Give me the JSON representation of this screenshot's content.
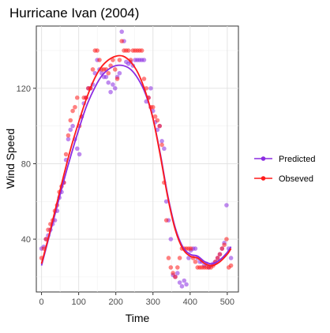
{
  "chart_data": {
    "type": "scatter",
    "title": "Hurricane Ivan (2004)",
    "xlabel": "Time",
    "ylabel": "Wind Speed",
    "xlim": [
      -14,
      530
    ],
    "ylim": [
      12,
      153
    ],
    "x_ticks": [
      0,
      100,
      200,
      300,
      400,
      500
    ],
    "y_ticks": [
      40,
      80,
      120
    ],
    "grid": true,
    "legend_position": "right",
    "series": [
      {
        "name": "Predicted",
        "color": "#8B2BE2",
        "points": [
          [
            0,
            35
          ],
          [
            6,
            36
          ],
          [
            12,
            40
          ],
          [
            18,
            42
          ],
          [
            24,
            45
          ],
          [
            30,
            48
          ],
          [
            36,
            50
          ],
          [
            42,
            55
          ],
          [
            48,
            62
          ],
          [
            54,
            65
          ],
          [
            60,
            70
          ],
          [
            66,
            82
          ],
          [
            72,
            93
          ],
          [
            78,
            98
          ],
          [
            84,
            100
          ],
          [
            90,
            93
          ],
          [
            96,
            88
          ],
          [
            102,
            85
          ],
          [
            108,
            105
          ],
          [
            114,
            112
          ],
          [
            120,
            115
          ],
          [
            126,
            120
          ],
          [
            132,
            120
          ],
          [
            138,
            122
          ],
          [
            144,
            128
          ],
          [
            150,
            135
          ],
          [
            156,
            130
          ],
          [
            162,
            128
          ],
          [
            168,
            126
          ],
          [
            174,
            126
          ],
          [
            180,
            123
          ],
          [
            186,
            118
          ],
          [
            192,
            122
          ],
          [
            198,
            120
          ],
          [
            204,
            126
          ],
          [
            210,
            128
          ],
          [
            216,
            150
          ],
          [
            222,
            145
          ],
          [
            228,
            134
          ],
          [
            234,
            133
          ],
          [
            240,
            134
          ],
          [
            246,
            132
          ],
          [
            252,
            135
          ],
          [
            258,
            135
          ],
          [
            264,
            135
          ],
          [
            270,
            135
          ],
          [
            276,
            135
          ],
          [
            282,
            113
          ],
          [
            288,
            115
          ],
          [
            294,
            120
          ],
          [
            300,
            108
          ],
          [
            306,
            102
          ],
          [
            312,
            98
          ],
          [
            318,
            100
          ],
          [
            324,
            92
          ],
          [
            330,
            88
          ],
          [
            336,
            60
          ],
          [
            342,
            50
          ],
          [
            348,
            40
          ],
          [
            354,
            21
          ],
          [
            360,
            20
          ],
          [
            366,
            22
          ],
          [
            372,
            17
          ],
          [
            378,
            15
          ],
          [
            384,
            18
          ],
          [
            390,
            16
          ],
          [
            396,
            30
          ],
          [
            402,
            34
          ],
          [
            408,
            35
          ],
          [
            414,
            35
          ],
          [
            420,
            30
          ],
          [
            426,
            28
          ],
          [
            432,
            28
          ],
          [
            438,
            26
          ],
          [
            444,
            27
          ],
          [
            450,
            25
          ],
          [
            456,
            26
          ],
          [
            462,
            27
          ],
          [
            468,
            28
          ],
          [
            474,
            30
          ],
          [
            480,
            32
          ],
          [
            486,
            35
          ],
          [
            492,
            38
          ],
          [
            498,
            58
          ],
          [
            504,
            35
          ],
          [
            510,
            30
          ]
        ],
        "fit": [
          [
            0,
            26
          ],
          [
            20,
            41
          ],
          [
            40,
            56
          ],
          [
            60,
            71
          ],
          [
            80,
            85
          ],
          [
            100,
            98
          ],
          [
            120,
            110
          ],
          [
            140,
            119
          ],
          [
            160,
            126
          ],
          [
            180,
            130
          ],
          [
            200,
            132
          ],
          [
            220,
            132
          ],
          [
            240,
            130
          ],
          [
            260,
            125
          ],
          [
            280,
            117
          ],
          [
            300,
            104
          ],
          [
            320,
            85
          ],
          [
            340,
            63
          ],
          [
            360,
            46
          ],
          [
            380,
            36
          ],
          [
            400,
            32
          ],
          [
            420,
            31
          ],
          [
            440,
            28
          ],
          [
            460,
            27
          ],
          [
            480,
            29
          ],
          [
            500,
            33
          ],
          [
            510,
            36
          ]
        ]
      },
      {
        "name": "Obseved",
        "color": "#FF1A1A",
        "points": [
          [
            0,
            30
          ],
          [
            6,
            35
          ],
          [
            12,
            40
          ],
          [
            18,
            45
          ],
          [
            24,
            48
          ],
          [
            30,
            50
          ],
          [
            36,
            55
          ],
          [
            42,
            58
          ],
          [
            48,
            65
          ],
          [
            54,
            68
          ],
          [
            60,
            70
          ],
          [
            66,
            85
          ],
          [
            72,
            95
          ],
          [
            78,
            103
          ],
          [
            84,
            108
          ],
          [
            90,
            110
          ],
          [
            96,
            115
          ],
          [
            102,
            100
          ],
          [
            108,
            105
          ],
          [
            114,
            115
          ],
          [
            120,
            115
          ],
          [
            126,
            120
          ],
          [
            132,
            120
          ],
          [
            138,
            130
          ],
          [
            144,
            140
          ],
          [
            150,
            140
          ],
          [
            156,
            135
          ],
          [
            162,
            130
          ],
          [
            168,
            130
          ],
          [
            174,
            130
          ],
          [
            180,
            128
          ],
          [
            186,
            132
          ],
          [
            192,
            135
          ],
          [
            198,
            130
          ],
          [
            204,
            125
          ],
          [
            210,
            135
          ],
          [
            216,
            145
          ],
          [
            222,
            140
          ],
          [
            228,
            140
          ],
          [
            234,
            140
          ],
          [
            240,
            135
          ],
          [
            246,
            140
          ],
          [
            252,
            140
          ],
          [
            258,
            140
          ],
          [
            264,
            140
          ],
          [
            270,
            140
          ],
          [
            276,
            125
          ],
          [
            282,
            120
          ],
          [
            288,
            115
          ],
          [
            294,
            110
          ],
          [
            300,
            110
          ],
          [
            306,
            105
          ],
          [
            312,
            103
          ],
          [
            318,
            100
          ],
          [
            324,
            90
          ],
          [
            330,
            70
          ],
          [
            336,
            50
          ],
          [
            342,
            30
          ],
          [
            348,
            25
          ],
          [
            354,
            22
          ],
          [
            360,
            20
          ],
          [
            366,
            25
          ],
          [
            372,
            30
          ],
          [
            378,
            35
          ],
          [
            384,
            35
          ],
          [
            390,
            35
          ],
          [
            396,
            35
          ],
          [
            402,
            35
          ],
          [
            408,
            30
          ],
          [
            414,
            28
          ],
          [
            420,
            25
          ],
          [
            426,
            25
          ],
          [
            432,
            25
          ],
          [
            438,
            25
          ],
          [
            444,
            25
          ],
          [
            450,
            25
          ],
          [
            456,
            25
          ],
          [
            462,
            26
          ],
          [
            468,
            28
          ],
          [
            474,
            30
          ],
          [
            480,
            32
          ],
          [
            486,
            35
          ],
          [
            492,
            37
          ],
          [
            498,
            40
          ],
          [
            504,
            25
          ],
          [
            510,
            26
          ]
        ],
        "fit": [
          [
            0,
            27
          ],
          [
            20,
            42
          ],
          [
            40,
            58
          ],
          [
            60,
            74
          ],
          [
            80,
            89
          ],
          [
            100,
            102
          ],
          [
            120,
            114
          ],
          [
            140,
            124
          ],
          [
            160,
            131
          ],
          [
            180,
            135
          ],
          [
            200,
            137
          ],
          [
            220,
            137
          ],
          [
            240,
            134
          ],
          [
            260,
            128
          ],
          [
            280,
            118
          ],
          [
            300,
            104
          ],
          [
            320,
            84
          ],
          [
            340,
            62
          ],
          [
            360,
            45
          ],
          [
            380,
            35
          ],
          [
            400,
            31
          ],
          [
            420,
            30
          ],
          [
            440,
            27
          ],
          [
            460,
            26
          ],
          [
            480,
            28
          ],
          [
            500,
            32
          ],
          [
            510,
            35
          ]
        ]
      }
    ]
  }
}
